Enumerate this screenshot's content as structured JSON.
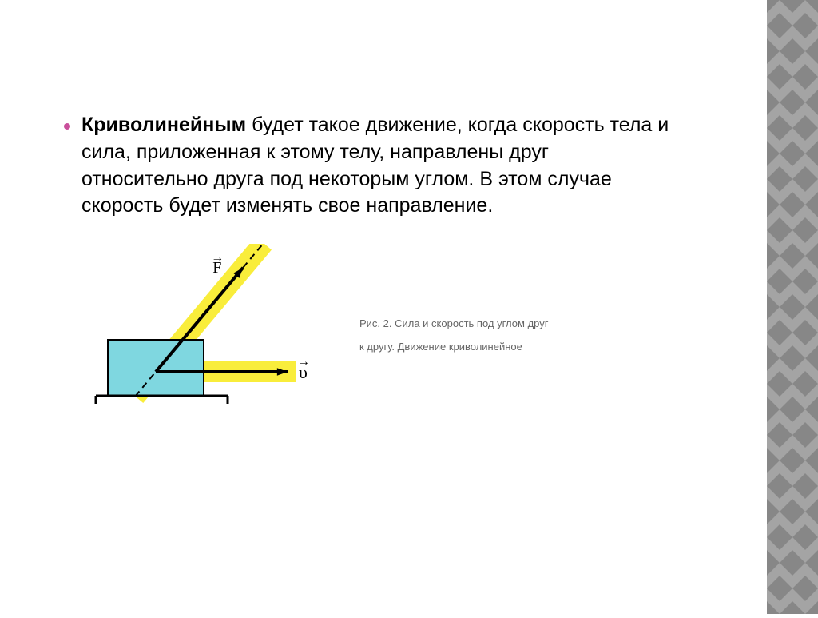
{
  "bullet": {
    "color": "#c94f9b"
  },
  "paragraph": {
    "bold_lead": "Криволинейным",
    "rest": " будет такое движение, когда скорость тела и сила, приложенная к этому телу, направлены друг относительно друга под некоторым углом. В этом случае скорость будет изменять свое направление."
  },
  "caption": {
    "line1": "Рис. 2. Сила и скорость под углом друг",
    "line2": "к другу. Движение криволинейное"
  },
  "diagram": {
    "highlight_color": "#f9ed3b",
    "box_fill": "#7fd7e0",
    "box_stroke": "#000000",
    "arrow_color": "#000000",
    "ground_color": "#000000",
    "dash_color": "#000000",
    "label_force": "F",
    "label_velocity": "υ",
    "vector_arrow_glyph": "→"
  },
  "sidebar": {
    "width": 64,
    "tile": 32,
    "color_a": "#a4a4a4",
    "color_b": "#878787"
  }
}
